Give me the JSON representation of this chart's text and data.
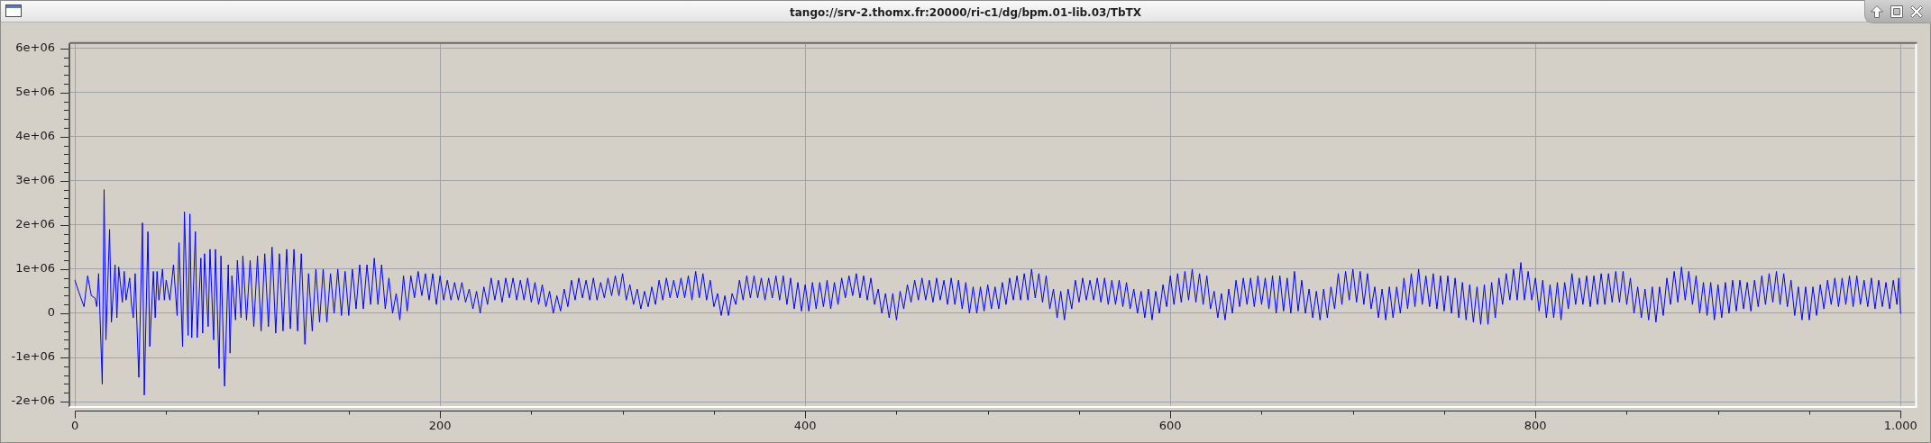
{
  "chart_data": {
    "type": "line",
    "title": "tango://srv-2.thomx.fr:20000/ri-c1/dg/bpm.01-lib.03/TbTX",
    "color": "#0000ff",
    "x": [
      0,
      2,
      5,
      7,
      9,
      11,
      12,
      13,
      15,
      16,
      17,
      19,
      20,
      22,
      23,
      24,
      26,
      27,
      28,
      30,
      31,
      32,
      33,
      35,
      37,
      38,
      40,
      41,
      43,
      44,
      45,
      46,
      48,
      49,
      50,
      52,
      54,
      56,
      57,
      59,
      60,
      62,
      63,
      64,
      66,
      67,
      69,
      70,
      71,
      73,
      74,
      76,
      77,
      79,
      80,
      82,
      84,
      85,
      86,
      88,
      89,
      91,
      92,
      94,
      96,
      98,
      100,
      102,
      104,
      106,
      108,
      110,
      112,
      114,
      116,
      118,
      120,
      122,
      124,
      126,
      128,
      130,
      132,
      134,
      136,
      138,
      140,
      142,
      144,
      146,
      148,
      150,
      152,
      154,
      156,
      158,
      160,
      162,
      164,
      166,
      168,
      170,
      172,
      174,
      176,
      178,
      180,
      182,
      184,
      186,
      188,
      190,
      192,
      194,
      196,
      198,
      200,
      202,
      204,
      206,
      208,
      210,
      212,
      214,
      216,
      218,
      220,
      222,
      224,
      226,
      228,
      230,
      232,
      234,
      236,
      238,
      240,
      242,
      244,
      246,
      248,
      250,
      252,
      254,
      256,
      258,
      260,
      262,
      264,
      266,
      268,
      270,
      272,
      274,
      276,
      278,
      280,
      282,
      284,
      286,
      288,
      290,
      292,
      294,
      296,
      298,
      300,
      302,
      304,
      306,
      308,
      310,
      312,
      314,
      316,
      318,
      320,
      322,
      324,
      326,
      328,
      330,
      332,
      334,
      336,
      338,
      340,
      342,
      344,
      346,
      348,
      350,
      352,
      354,
      356,
      358,
      360,
      362,
      364,
      366,
      368,
      370,
      372,
      374,
      376,
      378,
      380,
      382,
      384,
      386,
      388,
      390,
      392,
      394,
      396,
      398,
      400,
      402,
      404,
      406,
      408,
      410,
      412,
      414,
      416,
      418,
      420,
      422,
      424,
      426,
      428,
      430,
      432,
      434,
      436,
      438,
      440,
      442,
      444,
      446,
      448,
      450,
      452,
      454,
      456,
      458,
      460,
      462,
      464,
      466,
      468,
      470,
      472,
      474,
      476,
      478,
      480,
      482,
      484,
      486,
      488,
      490,
      492,
      494,
      496,
      498,
      500,
      502,
      504,
      506,
      508,
      510,
      512,
      514,
      516,
      518,
      520,
      522,
      524,
      526,
      528,
      530,
      532,
      534,
      536,
      538,
      540,
      542,
      544,
      546,
      548,
      550,
      552,
      554,
      556,
      558,
      560,
      562,
      564,
      566,
      568,
      570,
      572,
      574,
      576,
      578,
      580,
      582,
      584,
      586,
      588,
      590,
      592,
      594,
      596,
      598,
      600,
      602,
      604,
      606,
      608,
      610,
      612,
      614,
      616,
      618,
      620,
      622,
      624,
      626,
      628,
      630,
      632,
      634,
      636,
      638,
      640,
      642,
      644,
      646,
      648,
      650,
      652,
      654,
      656,
      658,
      660,
      662,
      664,
      666,
      668,
      670,
      672,
      674,
      676,
      678,
      680,
      682,
      684,
      686,
      688,
      690,
      692,
      694,
      696,
      698,
      700,
      702,
      704,
      706,
      708,
      710,
      712,
      714,
      716,
      718,
      720,
      722,
      724,
      726,
      728,
      730,
      732,
      734,
      736,
      738,
      740,
      742,
      744,
      746,
      748,
      750,
      752,
      754,
      756,
      758,
      760,
      762,
      764,
      766,
      768,
      770,
      772,
      774,
      776,
      778,
      780,
      782,
      784,
      786,
      788,
      790,
      792,
      794,
      796,
      798,
      800,
      802,
      804,
      806,
      808,
      810,
      812,
      814,
      816,
      818,
      820,
      822,
      824,
      826,
      828,
      830,
      832,
      834,
      836,
      838,
      840,
      842,
      844,
      846,
      848,
      850,
      852,
      854,
      856,
      858,
      860,
      862,
      864,
      866,
      868,
      870,
      872,
      874,
      876,
      878,
      880,
      882,
      884,
      886,
      888,
      890,
      892,
      894,
      896,
      898,
      900,
      902,
      904,
      906,
      908,
      910,
      912,
      914,
      916,
      918,
      920,
      922,
      924,
      926,
      928,
      930,
      932,
      934,
      936,
      938,
      940,
      942,
      944,
      946,
      948,
      950,
      952,
      954,
      956,
      958,
      960,
      962,
      964,
      966,
      968,
      970,
      972,
      974,
      976,
      978,
      980,
      982,
      984,
      986,
      988,
      990,
      992,
      994,
      996,
      998,
      999,
      1000
    ],
    "values": [
      750000,
      500000,
      150000,
      850000,
      400000,
      350000,
      150000,
      900000,
      -1600000,
      2800000,
      -600000,
      1900000,
      -200000,
      1100000,
      -100000,
      1050000,
      250000,
      950000,
      300000,
      800000,
      200000,
      -100000,
      900000,
      -1450000,
      2050000,
      -1850000,
      1850000,
      -750000,
      950000,
      -100000,
      950000,
      300000,
      1000000,
      300000,
      750000,
      300000,
      1100000,
      -50000,
      1600000,
      -750000,
      2300000,
      -500000,
      2250000,
      -550000,
      1850000,
      -550000,
      1250000,
      -450000,
      1350000,
      -300000,
      1450000,
      -600000,
      1450000,
      -1250000,
      1300000,
      -1650000,
      1100000,
      -900000,
      850000,
      -150000,
      1200000,
      -100000,
      1300000,
      -150000,
      1200000,
      -300000,
      1300000,
      -400000,
      1350000,
      -300000,
      1500000,
      -450000,
      1350000,
      -400000,
      1450000,
      -350000,
      1450000,
      -400000,
      1350000,
      -700000,
      900000,
      -400000,
      1000000,
      -200000,
      1000000,
      -200000,
      900000,
      0,
      1000000,
      -50000,
      950000,
      -50000,
      1000000,
      100000,
      1100000,
      100000,
      1100000,
      200000,
      1250000,
      200000,
      1100000,
      100000,
      800000,
      0,
      450000,
      -150000,
      850000,
      50000,
      850000,
      350000,
      950000,
      400000,
      900000,
      300000,
      900000,
      200000,
      850000,
      300000,
      750000,
      300000,
      700000,
      300000,
      700000,
      250000,
      550000,
      100000,
      500000,
      0,
      600000,
      200000,
      800000,
      300000,
      750000,
      250000,
      800000,
      350000,
      800000,
      300000,
      750000,
      300000,
      800000,
      250000,
      700000,
      200000,
      650000,
      150000,
      500000,
      0,
      400000,
      50000,
      550000,
      150000,
      750000,
      300000,
      800000,
      350000,
      750000,
      300000,
      800000,
      300000,
      700000,
      350000,
      800000,
      400000,
      850000,
      400000,
      900000,
      300000,
      650000,
      200000,
      550000,
      100000,
      500000,
      150000,
      600000,
      200000,
      750000,
      300000,
      800000,
      350000,
      750000,
      350000,
      800000,
      350000,
      850000,
      300000,
      950000,
      350000,
      900000,
      300000,
      750000,
      150000,
      450000,
      -50000,
      400000,
      -50000,
      450000,
      200000,
      750000,
      300000,
      850000,
      350000,
      850000,
      350000,
      800000,
      300000,
      800000,
      350000,
      850000,
      300000,
      850000,
      200000,
      800000,
      100000,
      700000,
      50000,
      650000,
      50000,
      700000,
      100000,
      700000,
      150000,
      750000,
      100000,
      700000,
      200000,
      800000,
      350000,
      850000,
      400000,
      900000,
      350000,
      850000,
      300000,
      800000,
      200000,
      550000,
      0,
      450000,
      -100000,
      450000,
      -150000,
      500000,
      100000,
      650000,
      250000,
      750000,
      300000,
      800000,
      300000,
      750000,
      250000,
      800000,
      300000,
      750000,
      200000,
      800000,
      200000,
      750000,
      100000,
      700000,
      0,
      600000,
      0,
      600000,
      50000,
      650000,
      100000,
      600000,
      100000,
      700000,
      200000,
      800000,
      300000,
      850000,
      300000,
      900000,
      300000,
      1000000,
      350000,
      900000,
      250000,
      850000,
      100000,
      550000,
      -100000,
      500000,
      -150000,
      550000,
      100000,
      750000,
      250000,
      800000,
      300000,
      750000,
      300000,
      800000,
      250000,
      800000,
      200000,
      750000,
      200000,
      750000,
      150000,
      700000,
      100000,
      550000,
      0,
      500000,
      -100000,
      550000,
      -150000,
      500000,
      0,
      650000,
      150000,
      850000,
      200000,
      900000,
      250000,
      950000,
      300000,
      1000000,
      250000,
      900000,
      200000,
      850000,
      100000,
      500000,
      -100000,
      450000,
      -150000,
      550000,
      0,
      750000,
      150000,
      800000,
      200000,
      800000,
      150000,
      850000,
      200000,
      800000,
      100000,
      850000,
      0,
      850000,
      50000,
      800000,
      0,
      950000,
      50000,
      750000,
      0,
      550000,
      -100000,
      500000,
      -150000,
      550000,
      -100000,
      600000,
      100000,
      900000,
      200000,
      950000,
      300000,
      1000000,
      250000,
      950000,
      200000,
      900000,
      100000,
      600000,
      -100000,
      550000,
      -150000,
      600000,
      -100000,
      600000,
      0,
      800000,
      100000,
      900000,
      150000,
      1000000,
      200000,
      850000,
      150000,
      900000,
      100000,
      850000,
      50000,
      850000,
      0,
      800000,
      -100000,
      700000,
      -150000,
      650000,
      -200000,
      600000,
      -250000,
      650000,
      -250000,
      700000,
      -100000,
      800000,
      200000,
      900000,
      300000,
      1000000,
      300000,
      1150000,
      300000,
      950000,
      300000,
      800000,
      50000,
      750000,
      -100000,
      650000,
      -100000,
      700000,
      -150000,
      700000,
      100000,
      900000,
      200000,
      800000,
      200000,
      850000,
      150000,
      850000,
      200000,
      900000,
      200000,
      900000,
      250000,
      950000,
      250000,
      950000,
      200000,
      800000,
      0,
      600000,
      -100000,
      550000,
      -150000,
      600000,
      -200000,
      600000,
      -50000,
      800000,
      200000,
      950000,
      250000,
      1050000,
      300000,
      950000,
      200000,
      850000,
      0,
      700000,
      -50000,
      700000,
      -150000,
      650000,
      -100000,
      700000,
      0,
      750000,
      50000,
      750000,
      100000,
      700000,
      50000,
      750000,
      150000,
      850000,
      200000,
      900000,
      250000,
      950000,
      200000,
      900000,
      150000,
      750000,
      -50000,
      600000,
      -150000,
      600000,
      -150000,
      600000,
      -50000,
      650000,
      100000,
      750000,
      200000,
      800000,
      150000,
      800000,
      200000,
      850000,
      150000,
      850000,
      200000,
      750000,
      150000,
      800000,
      100000,
      750000,
      150000,
      700000,
      100000,
      750000,
      200000,
      800000,
      0
    ],
    "xlim": [
      -3,
      1008
    ],
    "ylim": [
      -2100000,
      6100000
    ],
    "xticks": [
      0,
      {
        "value": 50,
        "label": null
      },
      {
        "value": 100,
        "label": null
      },
      {
        "value": 150,
        "label": null
      },
      200,
      {
        "value": 250,
        "label": null
      },
      {
        "value": 300,
        "label": null
      },
      {
        "value": 350,
        "label": null
      },
      400,
      {
        "value": 450,
        "label": null
      },
      {
        "value": 500,
        "label": null
      },
      {
        "value": 550,
        "label": null
      },
      600,
      {
        "value": 650,
        "label": null
      },
      {
        "value": 700,
        "label": null
      },
      {
        "value": 750,
        "label": null
      },
      800,
      {
        "value": 850,
        "label": null
      },
      {
        "value": 900,
        "label": null
      },
      {
        "value": 950,
        "label": null
      },
      {
        "value": 1000,
        "label": "1.000"
      }
    ],
    "yticks": [
      {
        "value": -2000000,
        "label": "-2e+06"
      },
      {
        "value": -1800000,
        "label": null
      },
      {
        "value": -1600000,
        "label": null
      },
      {
        "value": -1400000,
        "label": null
      },
      {
        "value": -1200000,
        "label": null
      },
      {
        "value": -1000000,
        "label": "-1e+06"
      },
      {
        "value": -800000,
        "label": null
      },
      {
        "value": -600000,
        "label": null
      },
      {
        "value": -400000,
        "label": null
      },
      {
        "value": -200000,
        "label": null
      },
      0,
      {
        "value": 200000,
        "label": null
      },
      {
        "value": 400000,
        "label": null
      },
      {
        "value": 600000,
        "label": null
      },
      {
        "value": 800000,
        "label": null
      },
      {
        "value": 1000000,
        "label": "1e+06"
      },
      {
        "value": 1200000,
        "label": null
      },
      {
        "value": 1400000,
        "label": null
      },
      {
        "value": 1600000,
        "label": null
      },
      {
        "value": 1800000,
        "label": null
      },
      {
        "value": 2000000,
        "label": "2e+06"
      },
      {
        "value": 2200000,
        "label": null
      },
      {
        "value": 2400000,
        "label": null
      },
      {
        "value": 2600000,
        "label": null
      },
      {
        "value": 2800000,
        "label": null
      },
      {
        "value": 3000000,
        "label": "3e+06"
      },
      {
        "value": 3200000,
        "label": null
      },
      {
        "value": 3400000,
        "label": null
      },
      {
        "value": 3600000,
        "label": null
      },
      {
        "value": 3800000,
        "label": null
      },
      {
        "value": 4000000,
        "label": "4e+06"
      },
      {
        "value": 4200000,
        "label": null
      },
      {
        "value": 4400000,
        "label": null
      },
      {
        "value": 4600000,
        "label": null
      },
      {
        "value": 4800000,
        "label": null
      },
      {
        "value": 5000000,
        "label": "5e+06"
      },
      {
        "value": 5200000,
        "label": null
      },
      {
        "value": 5400000,
        "label": null
      },
      {
        "value": 5600000,
        "label": null
      },
      {
        "value": 5800000,
        "label": null
      },
      {
        "value": 6000000,
        "label": "6e+06"
      }
    ],
    "grid": true
  }
}
